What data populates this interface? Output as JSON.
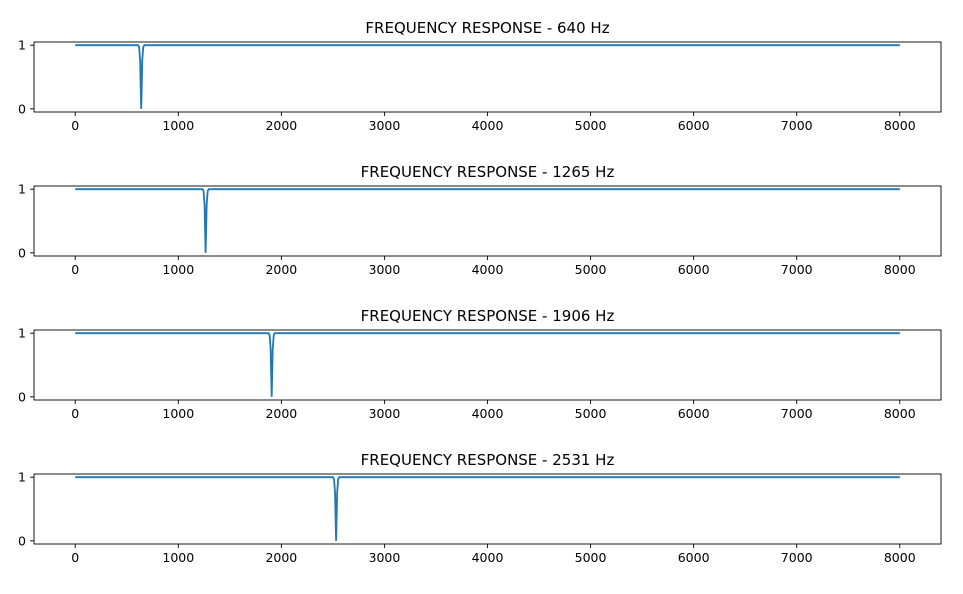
{
  "chart_data": [
    {
      "type": "line",
      "title": "FREQUENCY RESPONSE - 640 Hz",
      "xlim": [
        -400,
        8400
      ],
      "ylim": [
        -0.05,
        1.05
      ],
      "xticks": [
        0,
        1000,
        2000,
        3000,
        4000,
        5000,
        6000,
        7000,
        8000
      ],
      "yticks": [
        0,
        1
      ],
      "notch_hz": 640,
      "series": [
        {
          "x": [
            0,
            610,
            620,
            630,
            635,
            640,
            645,
            650,
            660,
            670,
            8000
          ],
          "y": [
            1,
            1,
            0.97,
            0.75,
            0.35,
            0,
            0.35,
            0.75,
            0.97,
            1,
            1
          ]
        }
      ],
      "color": "#1f77b4"
    },
    {
      "type": "line",
      "title": "FREQUENCY RESPONSE - 1265 Hz",
      "xlim": [
        -400,
        8400
      ],
      "ylim": [
        -0.05,
        1.05
      ],
      "xticks": [
        0,
        1000,
        2000,
        3000,
        4000,
        5000,
        6000,
        7000,
        8000
      ],
      "yticks": [
        0,
        1
      ],
      "notch_hz": 1265,
      "series": [
        {
          "x": [
            0,
            1235,
            1245,
            1255,
            1260,
            1265,
            1270,
            1275,
            1285,
            1295,
            8000
          ],
          "y": [
            1,
            1,
            0.97,
            0.75,
            0.35,
            0,
            0.35,
            0.75,
            0.97,
            1,
            1
          ]
        }
      ],
      "color": "#1f77b4"
    },
    {
      "type": "line",
      "title": "FREQUENCY RESPONSE - 1906 Hz",
      "xlim": [
        -400,
        8400
      ],
      "ylim": [
        -0.05,
        1.05
      ],
      "xticks": [
        0,
        1000,
        2000,
        3000,
        4000,
        5000,
        6000,
        7000,
        8000
      ],
      "yticks": [
        0,
        1
      ],
      "notch_hz": 1906,
      "series": [
        {
          "x": [
            0,
            1876,
            1886,
            1896,
            1901,
            1906,
            1911,
            1916,
            1926,
            1936,
            8000
          ],
          "y": [
            1,
            1,
            0.97,
            0.75,
            0.35,
            0,
            0.35,
            0.75,
            0.97,
            1,
            1
          ]
        }
      ],
      "color": "#1f77b4"
    },
    {
      "type": "line",
      "title": "FREQUENCY RESPONSE - 2531 Hz",
      "xlim": [
        -400,
        8400
      ],
      "ylim": [
        -0.05,
        1.05
      ],
      "xticks": [
        0,
        1000,
        2000,
        3000,
        4000,
        5000,
        6000,
        7000,
        8000
      ],
      "yticks": [
        0,
        1
      ],
      "notch_hz": 2531,
      "series": [
        {
          "x": [
            0,
            2501,
            2511,
            2521,
            2526,
            2531,
            2536,
            2541,
            2551,
            2561,
            8000
          ],
          "y": [
            1,
            1,
            0.97,
            0.75,
            0.35,
            0,
            0.35,
            0.75,
            0.97,
            1,
            1
          ]
        }
      ],
      "color": "#1f77b4"
    }
  ]
}
